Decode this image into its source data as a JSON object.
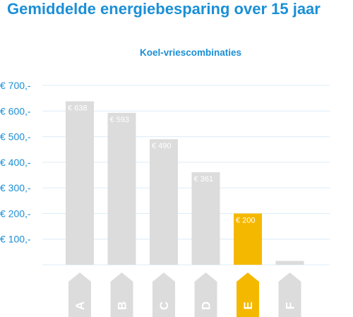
{
  "title": "Gemiddelde energiebesparing over 15 jaar",
  "subtitle": "Koel-vriescombinaties",
  "colors": {
    "accent": "#1b8fd6",
    "bar": "#dcdcdc",
    "highlight": "#f5b800",
    "grid": "#dcecf7",
    "label_text": "#ffffff"
  },
  "chart_data": {
    "type": "bar",
    "title": "Gemiddelde energiebesparing over 15 jaar",
    "subtitle": "Koel-vriescombinaties",
    "categories": [
      "A",
      "B",
      "C",
      "D",
      "E",
      "F"
    ],
    "values": [
      638,
      593,
      490,
      361,
      200,
      15
    ],
    "data_labels": [
      "€ 638",
      "€ 593",
      "€ 490",
      "€ 361",
      "€ 200",
      ""
    ],
    "highlight_category": "E",
    "ylim": [
      0,
      700
    ],
    "yticks": [
      100,
      200,
      300,
      400,
      500,
      600,
      700
    ],
    "ytick_labels": [
      "€ 100,-",
      "€ 200,-",
      "€ 300,-",
      "€ 400,-",
      "€ 500,-",
      "€ 600,-",
      "€ 700,-"
    ],
    "xlabel": "",
    "ylabel": "",
    "grid": true,
    "legend": "none"
  }
}
